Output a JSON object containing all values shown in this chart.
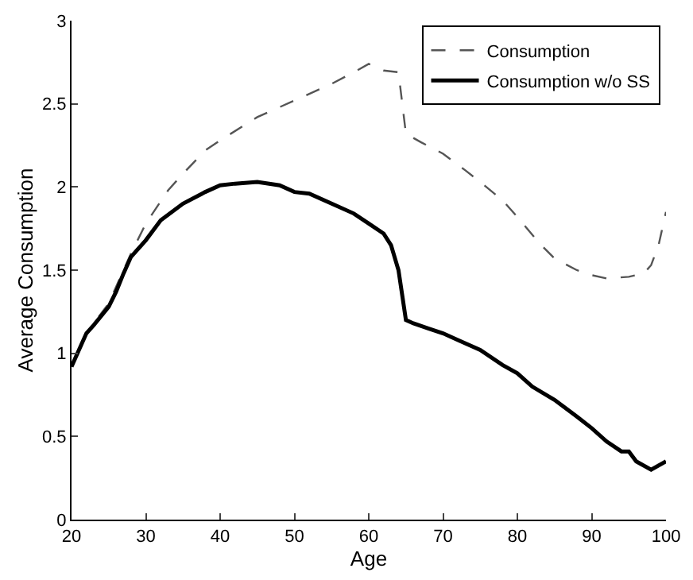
{
  "chart_data": {
    "type": "line",
    "xlabel": "Age",
    "ylabel": "Average Consumption",
    "xlim": [
      20,
      100
    ],
    "xticks": [
      20,
      30,
      40,
      50,
      60,
      70,
      80,
      90,
      100
    ],
    "ylim": [
      0,
      3
    ],
    "yticks": [
      0,
      0.5,
      1,
      1.5,
      2,
      2.5,
      3
    ],
    "legend": "top right",
    "marker": "none",
    "series": [
      {
        "name": "Consumption",
        "color": "#555555",
        "line_style": "dashed",
        "x": [
          20,
          22,
          25,
          28,
          30,
          33,
          35,
          38,
          40,
          45,
          50,
          55,
          58,
          60,
          62,
          64,
          65,
          67,
          70,
          73,
          75,
          78,
          80,
          83,
          85,
          88,
          90,
          92,
          95,
          97,
          98,
          99,
          100
        ],
        "values": [
          0.92,
          1.12,
          1.3,
          1.6,
          1.78,
          1.98,
          2.08,
          2.22,
          2.28,
          2.42,
          2.52,
          2.62,
          2.69,
          2.74,
          2.7,
          2.69,
          2.32,
          2.27,
          2.2,
          2.1,
          2.03,
          1.92,
          1.82,
          1.66,
          1.57,
          1.5,
          1.47,
          1.45,
          1.46,
          1.48,
          1.53,
          1.65,
          1.85
        ]
      },
      {
        "name": "Consumption w/o SS",
        "color": "#000000",
        "line_style": "solid",
        "x": [
          20,
          21,
          22,
          23,
          25,
          26,
          27,
          28,
          30,
          32,
          35,
          38,
          40,
          42,
          45,
          48,
          50,
          52,
          55,
          58,
          60,
          62,
          63,
          64,
          65,
          66,
          68,
          70,
          72,
          75,
          78,
          80,
          82,
          85,
          88,
          90,
          92,
          94,
          95,
          96,
          98,
          100
        ],
        "values": [
          0.92,
          1.02,
          1.12,
          1.17,
          1.28,
          1.37,
          1.48,
          1.58,
          1.68,
          1.8,
          1.9,
          1.97,
          2.01,
          2.02,
          2.03,
          2.01,
          1.97,
          1.96,
          1.9,
          1.84,
          1.78,
          1.72,
          1.65,
          1.5,
          1.2,
          1.18,
          1.15,
          1.12,
          1.08,
          1.02,
          0.93,
          0.88,
          0.8,
          0.72,
          0.62,
          0.55,
          0.47,
          0.41,
          0.41,
          0.35,
          0.3,
          0.35
        ]
      }
    ]
  }
}
